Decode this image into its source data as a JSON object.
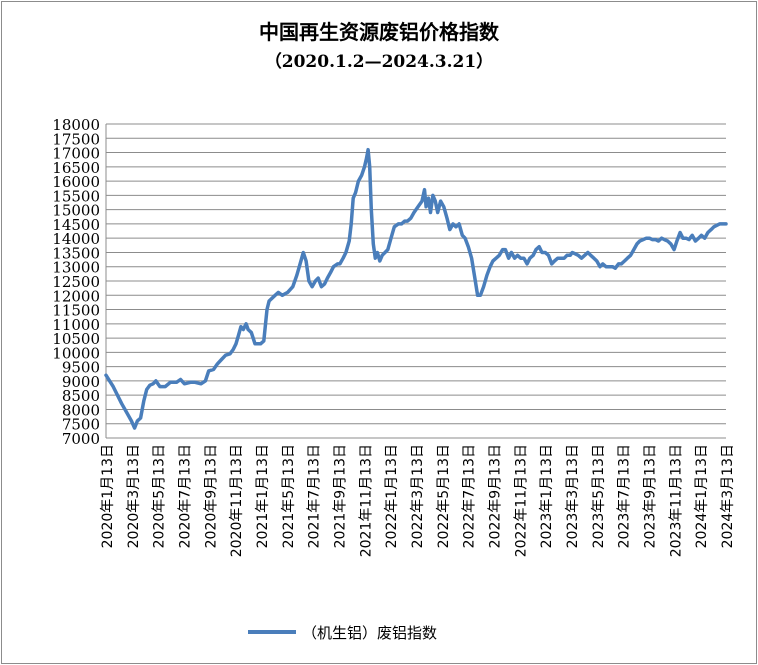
{
  "chart_data": {
    "type": "line",
    "title": "中国再生资源废铝价格指数",
    "subtitle": "（2020.1.2—2024.3.21）",
    "ylim": [
      7000,
      18000
    ],
    "y_ticks": [
      "7000",
      "7500",
      "8000",
      "8500",
      "9000",
      "9500",
      "10000",
      "10500",
      "11000",
      "11500",
      "12000",
      "12500",
      "13000",
      "13500",
      "14000",
      "14500",
      "15000",
      "15500",
      "16000",
      "16500",
      "17000",
      "17500",
      "18000"
    ],
    "x_ticks": [
      "2020年1月13日",
      "2020年3月13日",
      "2020年5月13日",
      "2020年7月13日",
      "2020年9月13日",
      "2020年11月13日",
      "2021年1月13日",
      "2021年5月13日",
      "2021年7月13日",
      "2021年9月13日",
      "2021年11月13日",
      "2022年1月13日",
      "2022年3月13日",
      "2022年5月13日",
      "2022年7月13日",
      "2022年9月13日",
      "2022年11月13日",
      "2023年1月13日",
      "2023年3月13日",
      "2023年5月13日",
      "2023年7月13日",
      "2023年9月13日",
      "2023年11月13日",
      "2024年1月13日",
      "2024年3月13日"
    ],
    "grid": true,
    "legend_position": "bottom",
    "color": "#4a7ebb",
    "series": [
      {
        "name": "（机生铝）废铝指数",
        "points": [
          [
            "2020-01-02",
            9200
          ],
          [
            "2020-01-20",
            8800
          ],
          [
            "2020-02-10",
            8200
          ],
          [
            "2020-03-05",
            7600
          ],
          [
            "2020-03-13",
            7350
          ],
          [
            "2020-03-20",
            7600
          ],
          [
            "2020-03-28",
            7700
          ],
          [
            "2020-04-05",
            8300
          ],
          [
            "2020-04-12",
            8700
          ],
          [
            "2020-04-20",
            8850
          ],
          [
            "2020-04-28",
            8900
          ],
          [
            "2020-05-05",
            9000
          ],
          [
            "2020-05-15",
            8800
          ],
          [
            "2020-05-28",
            8800
          ],
          [
            "2020-06-10",
            8950
          ],
          [
            "2020-06-25",
            8950
          ],
          [
            "2020-07-05",
            9050
          ],
          [
            "2020-07-15",
            8900
          ],
          [
            "2020-07-30",
            8950
          ],
          [
            "2020-08-10",
            8950
          ],
          [
            "2020-08-25",
            8900
          ],
          [
            "2020-09-05",
            9000
          ],
          [
            "2020-09-13",
            9350
          ],
          [
            "2020-09-25",
            9400
          ],
          [
            "2020-10-05",
            9600
          ],
          [
            "2020-10-15",
            9750
          ],
          [
            "2020-10-25",
            9900
          ],
          [
            "2020-11-05",
            9950
          ],
          [
            "2020-11-13",
            10100
          ],
          [
            "2020-11-20",
            10300
          ],
          [
            "2020-11-26",
            10600
          ],
          [
            "2020-12-02",
            10900
          ],
          [
            "2020-12-08",
            10800
          ],
          [
            "2020-12-15",
            11000
          ],
          [
            "2020-12-20",
            10800
          ],
          [
            "2020-12-28",
            10700
          ],
          [
            "2021-01-06",
            10300
          ],
          [
            "2021-01-20",
            10300
          ],
          [
            "2021-01-28",
            10400
          ],
          [
            "2021-02-05",
            11500
          ],
          [
            "2021-02-10",
            11800
          ],
          [
            "2021-02-25",
            12000
          ],
          [
            "2021-03-05",
            12100
          ],
          [
            "2021-03-15",
            12000
          ],
          [
            "2021-03-28",
            12100
          ],
          [
            "2021-04-10",
            12300
          ],
          [
            "2021-04-20",
            12700
          ],
          [
            "2021-04-28",
            13100
          ],
          [
            "2021-05-06",
            13500
          ],
          [
            "2021-05-13",
            13200
          ],
          [
            "2021-05-20",
            12500
          ],
          [
            "2021-05-28",
            12300
          ],
          [
            "2021-06-05",
            12500
          ],
          [
            "2021-06-12",
            12600
          ],
          [
            "2021-06-20",
            12300
          ],
          [
            "2021-06-28",
            12400
          ],
          [
            "2021-07-05",
            12600
          ],
          [
            "2021-07-13",
            12800
          ],
          [
            "2021-07-20",
            13000
          ],
          [
            "2021-07-30",
            13100
          ],
          [
            "2021-08-05",
            13100
          ],
          [
            "2021-08-13",
            13300
          ],
          [
            "2021-08-20",
            13500
          ],
          [
            "2021-08-28",
            13900
          ],
          [
            "2021-09-02",
            14500
          ],
          [
            "2021-09-07",
            15400
          ],
          [
            "2021-09-13",
            15600
          ],
          [
            "2021-09-20",
            16000
          ],
          [
            "2021-09-28",
            16200
          ],
          [
            "2021-10-05",
            16500
          ],
          [
            "2021-10-10",
            16800
          ],
          [
            "2021-10-14",
            17100
          ],
          [
            "2021-10-18",
            16500
          ],
          [
            "2021-10-22",
            15000
          ],
          [
            "2021-10-27",
            13800
          ],
          [
            "2021-11-01",
            13300
          ],
          [
            "2021-11-06",
            13500
          ],
          [
            "2021-11-12",
            13200
          ],
          [
            "2021-11-18",
            13400
          ],
          [
            "2021-11-25",
            13500
          ],
          [
            "2021-12-02",
            13600
          ],
          [
            "2021-12-10",
            14000
          ],
          [
            "2021-12-18",
            14400
          ],
          [
            "2021-12-28",
            14500
          ],
          [
            "2022-01-05",
            14500
          ],
          [
            "2022-01-13",
            14600
          ],
          [
            "2022-01-20",
            14600
          ],
          [
            "2022-01-28",
            14700
          ],
          [
            "2022-02-05",
            14900
          ],
          [
            "2022-02-15",
            15100
          ],
          [
            "2022-02-25",
            15300
          ],
          [
            "2022-03-03",
            15700
          ],
          [
            "2022-03-07",
            15100
          ],
          [
            "2022-03-13",
            15400
          ],
          [
            "2022-03-18",
            14900
          ],
          [
            "2022-03-24",
            15500
          ],
          [
            "2022-03-30",
            15300
          ],
          [
            "2022-04-05",
            14900
          ],
          [
            "2022-04-12",
            15300
          ],
          [
            "2022-04-20",
            15100
          ],
          [
            "2022-04-28",
            14700
          ],
          [
            "2022-05-05",
            14300
          ],
          [
            "2022-05-13",
            14500
          ],
          [
            "2022-05-20",
            14400
          ],
          [
            "2022-05-28",
            14500
          ],
          [
            "2022-06-05",
            14100
          ],
          [
            "2022-06-12",
            14000
          ],
          [
            "2022-06-20",
            13700
          ],
          [
            "2022-06-28",
            13300
          ],
          [
            "2022-07-05",
            12700
          ],
          [
            "2022-07-13",
            12000
          ],
          [
            "2022-07-20",
            12000
          ],
          [
            "2022-07-28",
            12300
          ],
          [
            "2022-08-05",
            12700
          ],
          [
            "2022-08-13",
            13000
          ],
          [
            "2022-08-20",
            13200
          ],
          [
            "2022-08-28",
            13300
          ],
          [
            "2022-09-05",
            13400
          ],
          [
            "2022-09-13",
            13600
          ],
          [
            "2022-09-20",
            13600
          ],
          [
            "2022-09-28",
            13300
          ],
          [
            "2022-10-05",
            13500
          ],
          [
            "2022-10-13",
            13300
          ],
          [
            "2022-10-20",
            13400
          ],
          [
            "2022-10-28",
            13300
          ],
          [
            "2022-11-05",
            13300
          ],
          [
            "2022-11-13",
            13100
          ],
          [
            "2022-11-20",
            13300
          ],
          [
            "2022-11-28",
            13400
          ],
          [
            "2022-12-05",
            13600
          ],
          [
            "2022-12-13",
            13700
          ],
          [
            "2022-12-20",
            13500
          ],
          [
            "2022-12-28",
            13500
          ],
          [
            "2023-01-05",
            13400
          ],
          [
            "2023-01-13",
            13100
          ],
          [
            "2023-01-20",
            13200
          ],
          [
            "2023-01-28",
            13300
          ],
          [
            "2023-02-05",
            13300
          ],
          [
            "2023-02-13",
            13300
          ],
          [
            "2023-02-20",
            13400
          ],
          [
            "2023-02-28",
            13400
          ],
          [
            "2023-03-05",
            13500
          ],
          [
            "2023-03-13",
            13450
          ],
          [
            "2023-03-20",
            13400
          ],
          [
            "2023-03-28",
            13300
          ],
          [
            "2023-04-05",
            13400
          ],
          [
            "2023-04-13",
            13500
          ],
          [
            "2023-04-20",
            13400
          ],
          [
            "2023-04-28",
            13300
          ],
          [
            "2023-05-05",
            13200
          ],
          [
            "2023-05-13",
            13000
          ],
          [
            "2023-05-20",
            13100
          ],
          [
            "2023-05-28",
            13000
          ],
          [
            "2023-06-05",
            13000
          ],
          [
            "2023-06-13",
            13000
          ],
          [
            "2023-06-20",
            12950
          ],
          [
            "2023-06-28",
            13100
          ],
          [
            "2023-07-05",
            13100
          ],
          [
            "2023-07-13",
            13200
          ],
          [
            "2023-07-20",
            13300
          ],
          [
            "2023-07-28",
            13400
          ],
          [
            "2023-08-05",
            13600
          ],
          [
            "2023-08-13",
            13800
          ],
          [
            "2023-08-20",
            13900
          ],
          [
            "2023-08-28",
            13950
          ],
          [
            "2023-09-05",
            14000
          ],
          [
            "2023-09-13",
            14000
          ],
          [
            "2023-09-20",
            13950
          ],
          [
            "2023-09-28",
            13950
          ],
          [
            "2023-10-05",
            13900
          ],
          [
            "2023-10-13",
            14000
          ],
          [
            "2023-10-20",
            13950
          ],
          [
            "2023-10-28",
            13900
          ],
          [
            "2023-11-05",
            13800
          ],
          [
            "2023-11-13",
            13600
          ],
          [
            "2023-11-20",
            13900
          ],
          [
            "2023-11-28",
            14200
          ],
          [
            "2023-12-05",
            14000
          ],
          [
            "2023-12-13",
            14000
          ],
          [
            "2023-12-20",
            13950
          ],
          [
            "2023-12-28",
            14100
          ],
          [
            "2024-01-05",
            13900
          ],
          [
            "2024-01-13",
            14000
          ],
          [
            "2024-01-20",
            14100
          ],
          [
            "2024-01-28",
            14000
          ],
          [
            "2024-02-05",
            14200
          ],
          [
            "2024-02-13",
            14300
          ],
          [
            "2024-02-20",
            14400
          ],
          [
            "2024-03-05",
            14500
          ],
          [
            "2024-03-21",
            14500
          ]
        ]
      }
    ]
  }
}
